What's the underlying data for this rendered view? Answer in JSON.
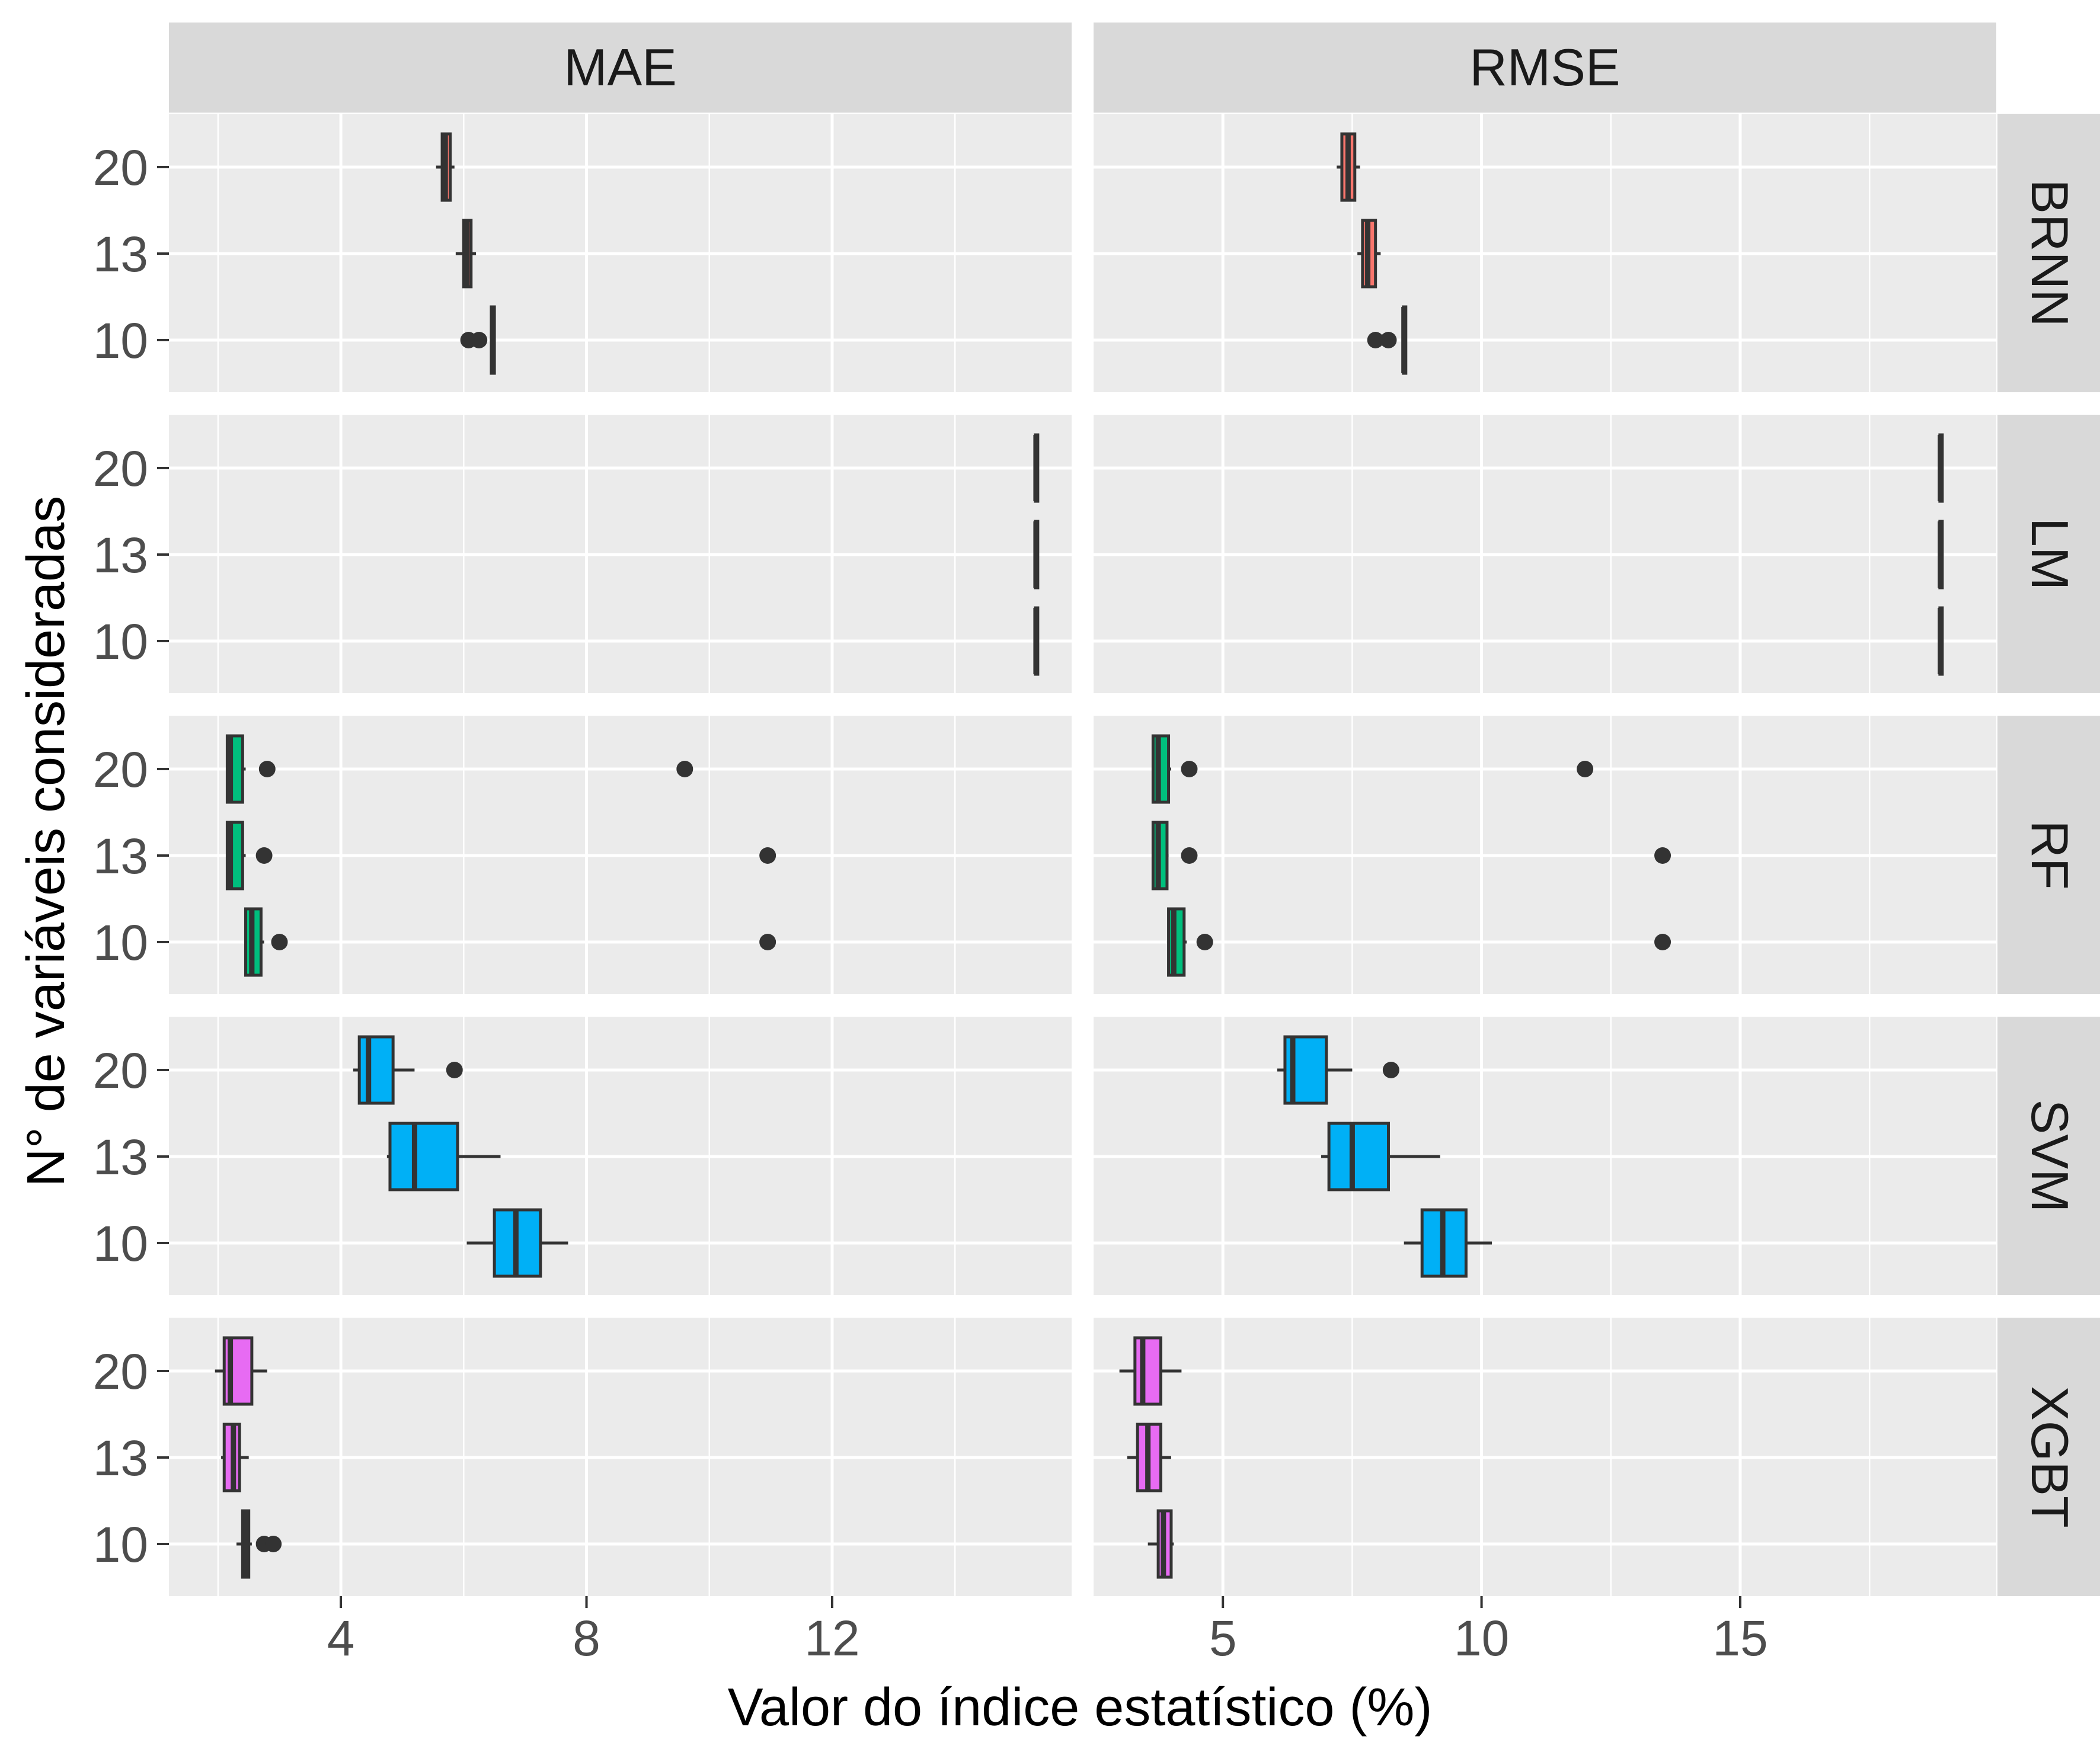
{
  "chart_data": {
    "type": "boxplot",
    "orientation": "horizontal",
    "xlabel": "Valor do índice estatístico (%)",
    "ylabel": "N° de variáveis consideradas",
    "columns": [
      {
        "label": "MAE",
        "xlim": [
          1.2,
          15.9
        ],
        "ticks": [
          4,
          8,
          12
        ],
        "tick_labels": [
          "4",
          "8",
          "12"
        ],
        "minor_ticks": [
          2,
          6,
          10,
          14
        ]
      },
      {
        "label": "RMSE",
        "xlim": [
          2.5,
          19.95
        ],
        "ticks": [
          5,
          10,
          15
        ],
        "tick_labels": [
          "5",
          "10",
          "15"
        ],
        "minor_ticks": [
          7.5,
          12.5,
          17.5
        ]
      }
    ],
    "categories": [
      "20",
      "13",
      "10"
    ],
    "grid": true,
    "legend": "none",
    "series": [
      {
        "name": "BRNN",
        "color": "#F8766D",
        "boxes": [
          [
            {
              "category": "20",
              "whisker_low": 5.55,
              "q1": 5.65,
              "median": 5.7,
              "q3": 5.78,
              "whisker_high": 5.85,
              "outliers": []
            },
            {
              "category": "13",
              "whisker_low": 5.87,
              "q1": 6.0,
              "median": 6.05,
              "q3": 6.12,
              "whisker_high": 6.2,
              "outliers": []
            },
            {
              "category": "10",
              "whisker_low": 6.44,
              "q1": 6.45,
              "median": 6.47,
              "q3": 6.5,
              "whisker_high": 6.52,
              "outliers": [
                6.08,
                6.25
              ]
            }
          ],
          [
            {
              "category": "20",
              "whisker_low": 7.2,
              "q1": 7.3,
              "median": 7.42,
              "q3": 7.55,
              "whisker_high": 7.65,
              "outliers": []
            },
            {
              "category": "13",
              "whisker_low": 7.6,
              "q1": 7.7,
              "median": 7.8,
              "q3": 7.95,
              "whisker_high": 8.05,
              "outliers": []
            },
            {
              "category": "10",
              "whisker_low": 8.48,
              "q1": 8.49,
              "median": 8.5,
              "q3": 8.52,
              "whisker_high": 8.53,
              "outliers": [
                7.95,
                8.2
              ]
            }
          ]
        ]
      },
      {
        "name": "LM",
        "color": "#A3A500",
        "boxes": [
          [
            {
              "category": "20",
              "whisker_low": 15.3,
              "q1": 15.31,
              "median": 15.32,
              "q3": 15.33,
              "whisker_high": 15.34,
              "outliers": []
            },
            {
              "category": "13",
              "whisker_low": 15.3,
              "q1": 15.31,
              "median": 15.32,
              "q3": 15.33,
              "whisker_high": 15.34,
              "outliers": []
            },
            {
              "category": "10",
              "whisker_low": 15.3,
              "q1": 15.31,
              "median": 15.32,
              "q3": 15.33,
              "whisker_high": 15.34,
              "outliers": []
            }
          ],
          [
            {
              "category": "20",
              "whisker_low": 18.85,
              "q1": 18.86,
              "median": 18.87,
              "q3": 18.88,
              "whisker_high": 18.89,
              "outliers": []
            },
            {
              "category": "13",
              "whisker_low": 18.85,
              "q1": 18.86,
              "median": 18.87,
              "q3": 18.88,
              "whisker_high": 18.89,
              "outliers": []
            },
            {
              "category": "10",
              "whisker_low": 18.85,
              "q1": 18.86,
              "median": 18.87,
              "q3": 18.88,
              "whisker_high": 18.89,
              "outliers": []
            }
          ]
        ]
      },
      {
        "name": "RF",
        "color": "#00BF7D",
        "boxes": [
          [
            {
              "category": "20",
              "whisker_low": 2.15,
              "q1": 2.15,
              "median": 2.2,
              "q3": 2.4,
              "whisker_high": 2.45,
              "outliers": [
                2.8,
                9.6
              ]
            },
            {
              "category": "13",
              "whisker_low": 2.15,
              "q1": 2.15,
              "median": 2.2,
              "q3": 2.4,
              "whisker_high": 2.45,
              "outliers": [
                2.75,
                10.95
              ]
            },
            {
              "category": "10",
              "whisker_low": 2.45,
              "q1": 2.45,
              "median": 2.55,
              "q3": 2.7,
              "whisker_high": 2.75,
              "outliers": [
                3.0,
                10.95
              ]
            }
          ],
          [
            {
              "category": "20",
              "whisker_low": 3.65,
              "q1": 3.65,
              "median": 3.75,
              "q3": 3.95,
              "whisker_high": 4.0,
              "outliers": [
                4.35,
                12.0
              ]
            },
            {
              "category": "13",
              "whisker_low": 3.65,
              "q1": 3.65,
              "median": 3.75,
              "q3": 3.92,
              "whisker_high": 3.95,
              "outliers": [
                4.35,
                13.5
              ]
            },
            {
              "category": "10",
              "whisker_low": 3.95,
              "q1": 3.95,
              "median": 4.05,
              "q3": 4.25,
              "whisker_high": 4.3,
              "outliers": [
                4.65,
                13.5
              ]
            }
          ]
        ]
      },
      {
        "name": "SVM",
        "color": "#00B0F6",
        "boxes": [
          [
            {
              "category": "20",
              "whisker_low": 4.2,
              "q1": 4.3,
              "median": 4.45,
              "q3": 4.85,
              "whisker_high": 5.2,
              "outliers": [
                5.85
              ]
            },
            {
              "category": "13",
              "whisker_low": 4.75,
              "q1": 4.8,
              "median": 5.2,
              "q3": 5.9,
              "whisker_high": 6.6,
              "outliers": []
            },
            {
              "category": "10",
              "whisker_low": 6.05,
              "q1": 6.5,
              "median": 6.85,
              "q3": 7.25,
              "whisker_high": 7.7,
              "outliers": []
            }
          ],
          [
            {
              "category": "20",
              "whisker_low": 6.05,
              "q1": 6.2,
              "median": 6.35,
              "q3": 7.0,
              "whisker_high": 7.5,
              "outliers": [
                8.25
              ]
            },
            {
              "category": "13",
              "whisker_low": 6.9,
              "q1": 7.05,
              "median": 7.5,
              "q3": 8.2,
              "whisker_high": 9.2,
              "outliers": []
            },
            {
              "category": "10",
              "whisker_low": 8.5,
              "q1": 8.85,
              "median": 9.25,
              "q3": 9.7,
              "whisker_high": 10.2,
              "outliers": []
            }
          ]
        ]
      },
      {
        "name": "XGBT",
        "color": "#E76BF3",
        "boxes": [
          [
            {
              "category": "20",
              "whisker_low": 1.95,
              "q1": 2.1,
              "median": 2.2,
              "q3": 2.55,
              "whisker_high": 2.8,
              "outliers": []
            },
            {
              "category": "13",
              "whisker_low": 2.05,
              "q1": 2.1,
              "median": 2.25,
              "q3": 2.35,
              "whisker_high": 2.5,
              "outliers": []
            },
            {
              "category": "10",
              "whisker_low": 2.3,
              "q1": 2.4,
              "median": 2.45,
              "q3": 2.5,
              "whisker_high": 2.55,
              "outliers": [
                2.75,
                2.9
              ]
            }
          ],
          [
            {
              "category": "20",
              "whisker_low": 3.0,
              "q1": 3.3,
              "median": 3.45,
              "q3": 3.8,
              "whisker_high": 4.2,
              "outliers": []
            },
            {
              "category": "13",
              "whisker_low": 3.15,
              "q1": 3.35,
              "median": 3.55,
              "q3": 3.8,
              "whisker_high": 4.0,
              "outliers": []
            },
            {
              "category": "10",
              "whisker_low": 3.55,
              "q1": 3.75,
              "median": 3.85,
              "q3": 4.0,
              "whisker_high": 4.05,
              "outliers": []
            }
          ]
        ]
      }
    ]
  }
}
